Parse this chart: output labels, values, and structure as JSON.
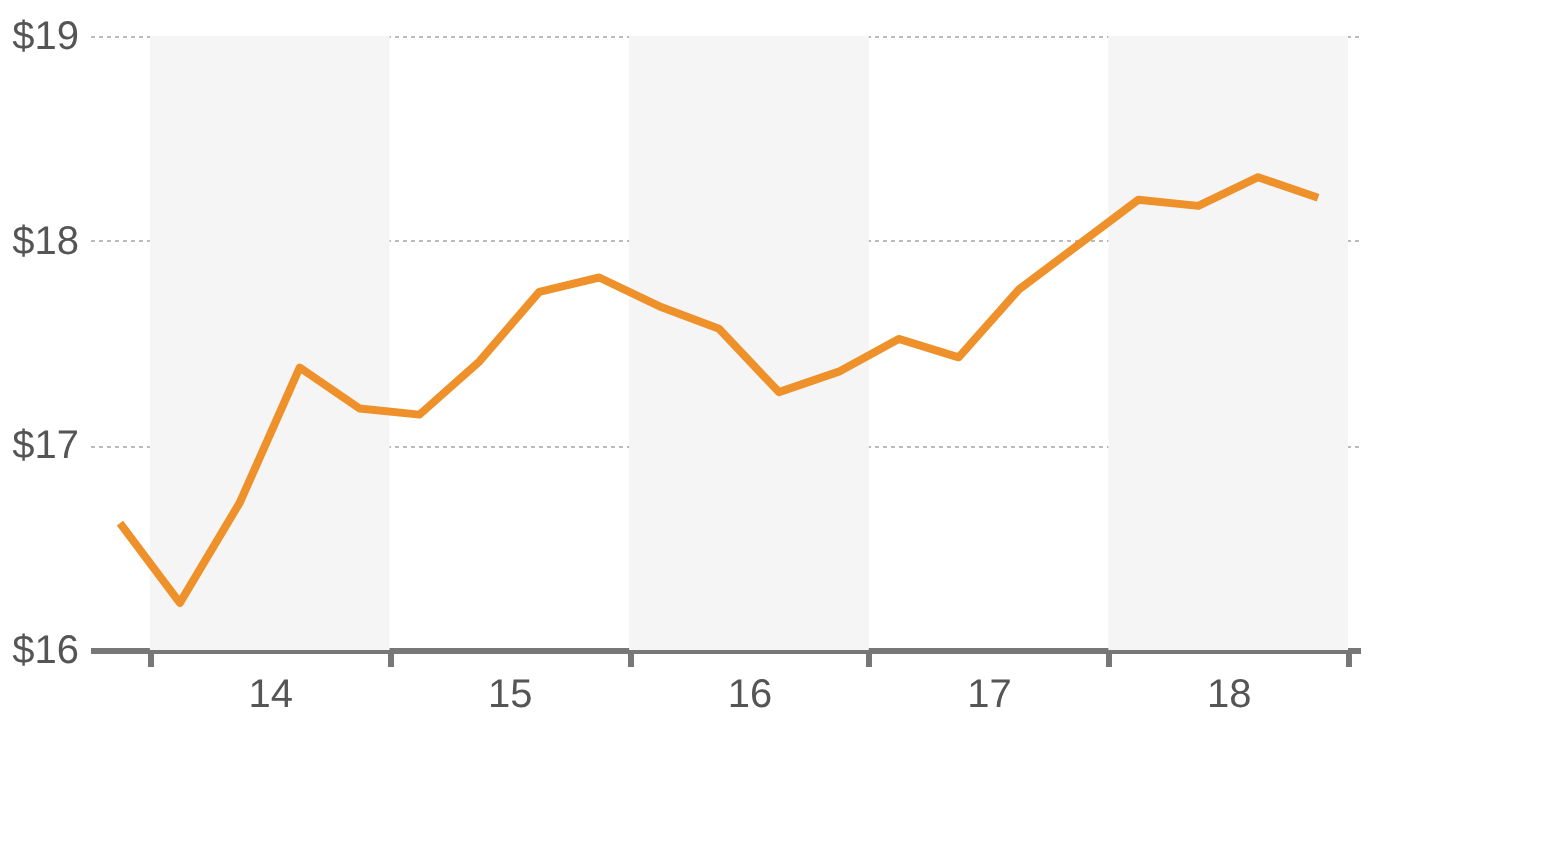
{
  "chart_data": {
    "type": "line",
    "x": [
      13.875,
      14.125,
      14.375,
      14.625,
      14.875,
      15.125,
      15.375,
      15.625,
      15.875,
      16.125,
      16.375,
      16.625,
      16.875,
      17.125,
      17.375,
      17.625,
      17.875,
      18.125,
      18.375,
      18.625,
      18.875
    ],
    "series": [
      {
        "color": "#ef912a",
        "values": [
          16.62,
          16.23,
          16.72,
          17.38,
          17.18,
          17.15,
          17.41,
          17.75,
          17.82,
          17.68,
          17.57,
          17.26,
          17.36,
          17.52,
          17.43,
          17.76,
          17.98,
          18.2,
          18.17,
          18.31,
          18.21
        ]
      }
    ],
    "xlim": [
      13.75,
      19.05
    ],
    "xticks": [
      {
        "value": 14,
        "label": null
      },
      {
        "value": 14.5,
        "label": "14"
      },
      {
        "value": 15,
        "label": null
      },
      {
        "value": 15.5,
        "label": "15"
      },
      {
        "value": 16,
        "label": null
      },
      {
        "value": 16.5,
        "label": "16"
      },
      {
        "value": 17,
        "label": null
      },
      {
        "value": 17.5,
        "label": "17"
      },
      {
        "value": 18,
        "label": null
      },
      {
        "value": 18.5,
        "label": "18"
      },
      {
        "value": 19,
        "label": null
      }
    ],
    "ylim": [
      16,
      19
    ],
    "yticks": [
      {
        "value": 16,
        "label": "$16"
      },
      {
        "value": 17,
        "label": "$17"
      },
      {
        "value": 18,
        "label": "$18"
      },
      {
        "value": 19,
        "label": "$19"
      }
    ],
    "bands": [
      {
        "axis": "x",
        "from": 14,
        "to": 15,
        "color": "#f5f5f5"
      },
      {
        "axis": "x",
        "from": 16,
        "to": 17,
        "color": "#f5f5f5"
      },
      {
        "axis": "x",
        "from": 18,
        "to": 19,
        "color": "#f5f5f5"
      }
    ],
    "grid": "y",
    "marker": "none",
    "line_style": "solid"
  }
}
